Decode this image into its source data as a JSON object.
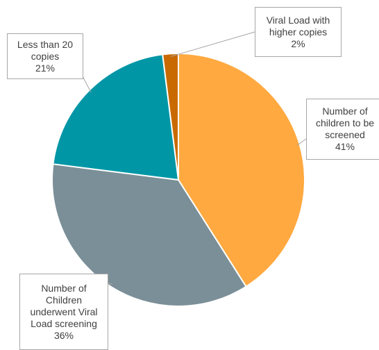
{
  "chart_data": {
    "type": "pie",
    "title": "",
    "slices": [
      {
        "label": "Number of children to be screened",
        "value": 41,
        "label_lines": [
          "Number of",
          "children to be",
          "screened"
        ],
        "percent_label": "41%",
        "color": "#FFA940"
      },
      {
        "label": "Number of Children underwent Viral Load screening",
        "value": 36,
        "label_lines": [
          "Number of",
          "Children",
          "underwent Viral",
          "Load screening"
        ],
        "percent_label": "36%",
        "color": "#7B8F98"
      },
      {
        "label": "Less than 20 copies",
        "value": 21,
        "label_lines": [
          "Less than 20",
          "copies"
        ],
        "percent_label": "21%",
        "color": "#0096A6"
      },
      {
        "label": "Viral Load with higher copies",
        "value": 2,
        "label_lines": [
          "Viral Load with",
          "higher copies"
        ],
        "percent_label": "2%",
        "color": "#C96A00"
      }
    ],
    "legend": "none",
    "label_style": "callout"
  }
}
